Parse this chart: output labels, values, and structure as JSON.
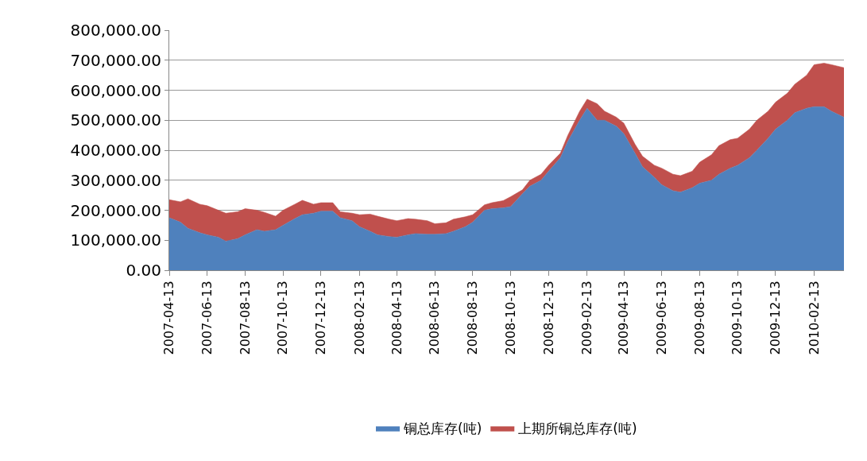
{
  "chart_data": {
    "type": "area",
    "stacked": true,
    "grid": "y",
    "legend": "bottom",
    "marker": "none",
    "x": [
      "2007-04-13",
      "2007-05-01",
      "2007-05-13",
      "2007-06-01",
      "2007-06-13",
      "2007-07-01",
      "2007-07-13",
      "2007-08-01",
      "2007-08-13",
      "2007-09-01",
      "2007-09-13",
      "2007-10-01",
      "2007-10-13",
      "2007-11-01",
      "2007-11-13",
      "2007-12-01",
      "2007-12-13",
      "2008-01-01",
      "2008-01-13",
      "2008-02-01",
      "2008-02-13",
      "2008-03-01",
      "2008-03-13",
      "2008-04-01",
      "2008-04-13",
      "2008-05-01",
      "2008-05-13",
      "2008-06-01",
      "2008-06-13",
      "2008-07-01",
      "2008-07-13",
      "2008-08-01",
      "2008-08-13",
      "2008-09-01",
      "2008-09-13",
      "2008-10-01",
      "2008-10-13",
      "2008-11-01",
      "2008-11-13",
      "2008-12-01",
      "2008-12-13",
      "2009-01-01",
      "2009-01-13",
      "2009-02-01",
      "2009-02-13",
      "2009-03-01",
      "2009-03-13",
      "2009-04-01",
      "2009-04-13",
      "2009-05-01",
      "2009-05-13",
      "2009-06-01",
      "2009-06-13",
      "2009-07-01",
      "2009-07-13",
      "2009-08-01",
      "2009-08-13",
      "2009-09-01",
      "2009-09-13",
      "2009-10-01",
      "2009-10-13",
      "2009-11-01",
      "2009-11-13",
      "2009-12-01",
      "2009-12-13",
      "2010-01-01",
      "2010-01-13",
      "2010-02-01",
      "2010-02-13",
      "2010-03-01",
      "2010-03-13",
      "2010-04-02"
    ],
    "series": [
      {
        "name": "铜总库存(吨)",
        "color": "#4f81bd",
        "values": [
          175000,
          160000,
          140000,
          125000,
          118000,
          110000,
          97000,
          105000,
          118000,
          135000,
          130000,
          135000,
          150000,
          172000,
          185000,
          190000,
          197000,
          197000,
          175000,
          165000,
          145000,
          130000,
          118000,
          112000,
          110000,
          118000,
          122000,
          120000,
          120000,
          122000,
          130000,
          145000,
          160000,
          200000,
          205000,
          208000,
          212000,
          255000,
          280000,
          300000,
          330000,
          375000,
          430000,
          500000,
          540000,
          500000,
          500000,
          480000,
          455000,
          390000,
          345000,
          310000,
          285000,
          265000,
          260000,
          275000,
          290000,
          300000,
          320000,
          340000,
          350000,
          375000,
          400000,
          440000,
          470000,
          500000,
          525000,
          540000,
          545000,
          545000,
          530000,
          510000
        ]
      },
      {
        "name": "上期所铜总库存(吨)",
        "color": "#c0504d",
        "values": [
          60000,
          68000,
          98000,
          95000,
          97000,
          90000,
          93000,
          90000,
          87000,
          65000,
          63000,
          45000,
          50000,
          48000,
          48000,
          30000,
          28000,
          28000,
          20000,
          25000,
          40000,
          57000,
          62000,
          58000,
          55000,
          54000,
          48000,
          45000,
          35000,
          36000,
          40000,
          33000,
          25000,
          18000,
          20000,
          24000,
          33000,
          13000,
          20000,
          20000,
          20000,
          15000,
          20000,
          30000,
          30000,
          55000,
          30000,
          30000,
          35000,
          30000,
          35000,
          40000,
          55000,
          55000,
          55000,
          55000,
          70000,
          85000,
          95000,
          95000,
          90000,
          95000,
          100000,
          90000,
          90000,
          90000,
          95000,
          110000,
          140000,
          145000,
          155000,
          165000
        ]
      }
    ],
    "xlim": [
      "2007-04-13",
      "2010-04-02"
    ],
    "xticks": [
      "2007-04-13",
      "2007-06-13",
      "2007-08-13",
      "2007-10-13",
      "2007-12-13",
      "2008-02-13",
      "2008-04-13",
      "2008-06-13",
      "2008-08-13",
      "2008-10-13",
      "2008-12-13",
      "2009-02-13",
      "2009-04-13",
      "2009-06-13",
      "2009-08-13",
      "2009-10-13",
      "2009-12-13",
      "2010-02-13"
    ],
    "ylim": [
      0,
      800000
    ],
    "yticks": [
      {
        "value": 0,
        "label": "0.00"
      },
      {
        "value": 100000,
        "label": "100,000.00"
      },
      {
        "value": 200000,
        "label": "200,000.00"
      },
      {
        "value": 300000,
        "label": "300,000.00"
      },
      {
        "value": 400000,
        "label": "400,000.00"
      },
      {
        "value": 500000,
        "label": "500,000.00"
      },
      {
        "value": 600000,
        "label": "600,000.00"
      },
      {
        "value": 700000,
        "label": "700,000.00"
      },
      {
        "value": 800000,
        "label": "800,000.00"
      }
    ]
  }
}
